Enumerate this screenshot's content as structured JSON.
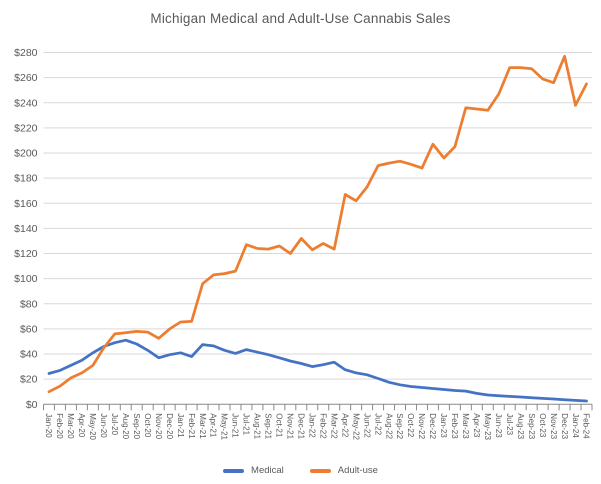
{
  "title": "Michigan Medical and Adult-Use Cannabis Sales",
  "chart_data": {
    "type": "line",
    "title": "Michigan Medical and Adult-Use Cannabis Sales",
    "categories": [
      "Jan-20",
      "Feb-20",
      "Mar-20",
      "Apr-20",
      "May-20",
      "Jun-20",
      "Jul-20",
      "Aug-20",
      "Sep-20",
      "Oct-20",
      "Nov-20",
      "Dec-20",
      "Jan-21",
      "Feb-21",
      "Mar-21",
      "Apr-21",
      "May-21",
      "Jun-21",
      "Jul-21",
      "Aug-21",
      "Sep-21",
      "Oct-21",
      "Nov-21",
      "Dec-21",
      "Jan-22",
      "Feb-22",
      "Mar-22",
      "Apr-22",
      "May-22",
      "Jun-22",
      "Jul-22",
      "Aug-22",
      "Sep-22",
      "Oct-22",
      "Nov-22",
      "Dec-22",
      "Jan-23",
      "Feb-23",
      "Mar-23",
      "Apr-23",
      "May-23",
      "Jun-23",
      "Jul-23",
      "Aug-23",
      "Sep-23",
      "Oct-23",
      "Nov-23",
      "Dec-23",
      "Jan-24",
      "Feb-24"
    ],
    "series": [
      {
        "name": "Medical",
        "color": "#4472C4",
        "values": [
          24.5,
          27,
          31,
          35,
          41,
          46,
          49,
          51,
          48,
          43,
          37,
          39.5,
          41,
          38,
          47.5,
          46.5,
          43,
          40.5,
          43.5,
          41.5,
          39.5,
          37,
          34.5,
          32.5,
          30,
          31.5,
          33.5,
          27.5,
          25,
          23.5,
          20.5,
          17.5,
          15.5,
          14.2,
          13.4,
          12.6,
          11.8,
          11,
          10.5,
          8.7,
          7.4,
          6.8,
          6.3,
          5.8,
          5.2,
          4.7,
          4.2,
          3.7,
          3.1,
          2.6
        ]
      },
      {
        "name": "Adult-use",
        "color": "#ED7D31",
        "values": [
          10,
          14.5,
          21,
          25,
          31,
          45,
          56,
          57,
          58,
          57.5,
          52.5,
          60,
          65.5,
          66,
          96,
          103,
          104,
          106,
          127,
          124,
          123.5,
          126,
          120,
          132,
          123,
          128,
          123.5,
          167,
          162,
          173,
          190,
          192,
          193.5,
          191,
          188,
          207,
          196,
          205,
          236,
          235,
          234,
          247,
          268,
          268,
          267,
          259,
          256,
          277,
          238,
          255
        ]
      }
    ],
    "xlabel": "",
    "ylabel": "",
    "y_tick_prefix": "$",
    "ylim": [
      0,
      280
    ],
    "y_step": 20,
    "grid": true,
    "legend_position": "bottom"
  },
  "colors": {
    "medical": "#4472C4",
    "adult_use": "#ED7D31",
    "text": "#595959",
    "gridline": "#D9D9D9",
    "axis": "#898989"
  },
  "legend": {
    "items": [
      {
        "label": "Medical",
        "color": "#4472C4"
      },
      {
        "label": "Adult-use",
        "color": "#ED7D31"
      }
    ]
  }
}
